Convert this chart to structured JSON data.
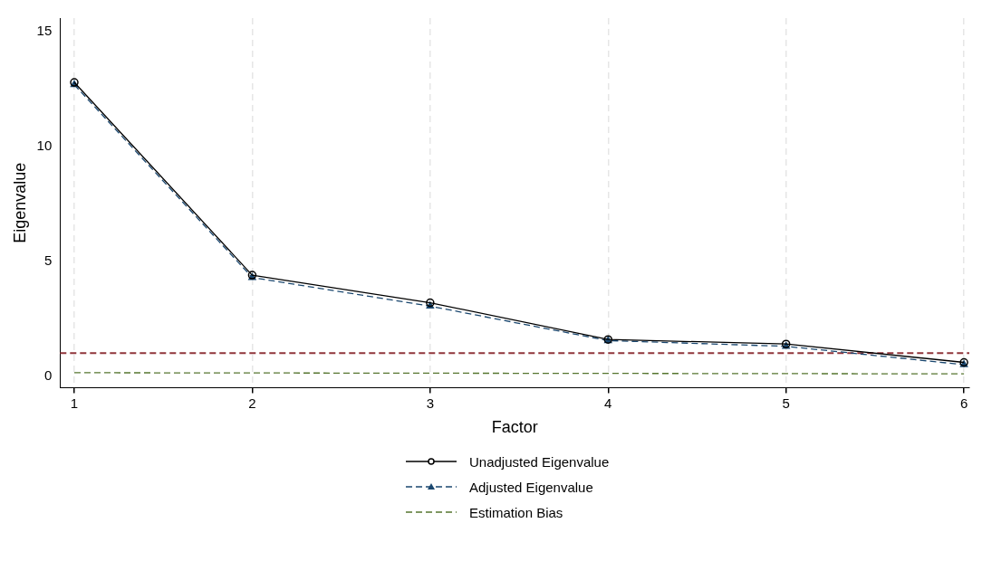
{
  "chart_data": {
    "type": "line",
    "xlabel": "Factor",
    "ylabel": "Eigenvalue",
    "x": [
      1,
      2,
      3,
      4,
      5,
      6
    ],
    "series": [
      {
        "name": "Unadjusted Eigenvalue",
        "color": "#000000",
        "values": [
          12.8,
          4.4,
          3.2,
          1.6,
          1.4,
          0.6
        ],
        "marker": "circle",
        "line_style": "solid"
      },
      {
        "name": "Adjusted Eigenvalue",
        "color": "#1a476f",
        "values": [
          12.7,
          4.3,
          3.05,
          1.55,
          1.3,
          0.5
        ],
        "marker": "triangle",
        "line_style": "dashed"
      },
      {
        "name": "Estimation Bias",
        "color": "#55752f",
        "values": [
          0.15,
          0.14,
          0.13,
          0.12,
          0.11,
          0.1
        ],
        "marker": "none",
        "line_style": "dashed"
      }
    ],
    "ref_lines": [
      {
        "axis": "y",
        "value": 1,
        "color": "#90353b",
        "line_style": "dashed"
      }
    ],
    "xlim": [
      0.92,
      6.03
    ],
    "xticks": [
      1,
      2,
      3,
      4,
      5,
      6
    ],
    "ylim": [
      -0.5,
      15.6
    ],
    "yticks": [
      0,
      5,
      10,
      15
    ],
    "grid": "x",
    "legend": "bottom"
  }
}
